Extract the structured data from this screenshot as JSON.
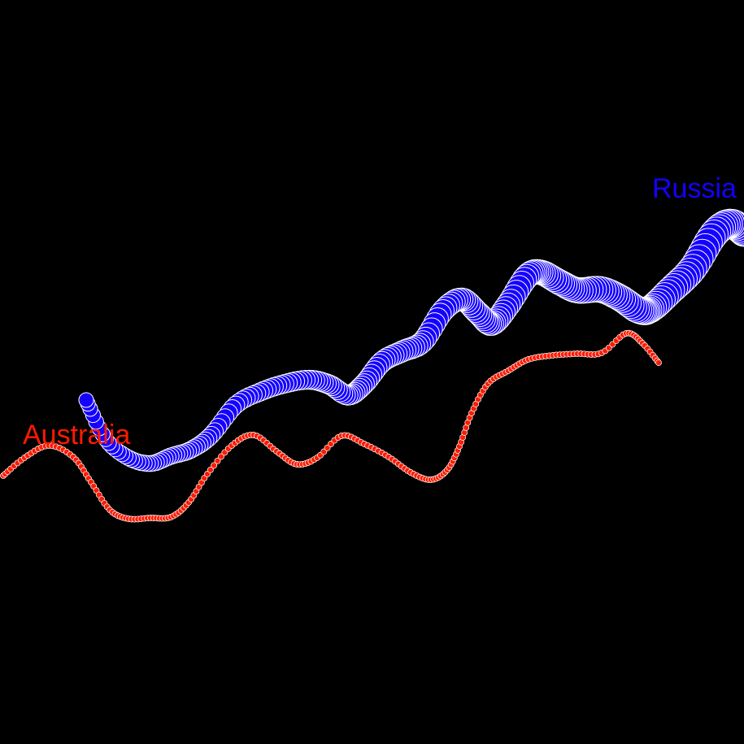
{
  "chart_data": {
    "type": "scatter",
    "title": "",
    "xlabel": "",
    "ylabel": "",
    "grid": false,
    "legend": "none",
    "background": "#000000",
    "marker_edge": "#ffffff",
    "series": [
      {
        "name": "Russia",
        "color": "#1500ff",
        "size": "large",
        "points": [
          [
            106,
            492
          ],
          [
            130,
            540
          ],
          [
            158,
            563
          ],
          [
            185,
            570
          ],
          [
            210,
            561
          ],
          [
            235,
            553
          ],
          [
            260,
            535
          ],
          [
            290,
            498
          ],
          [
            320,
            482
          ],
          [
            350,
            472
          ],
          [
            380,
            467
          ],
          [
            405,
            473
          ],
          [
            428,
            486
          ],
          [
            448,
            472
          ],
          [
            470,
            445
          ],
          [
            495,
            432
          ],
          [
            520,
            420
          ],
          [
            545,
            382
          ],
          [
            568,
            368
          ],
          [
            588,
            385
          ],
          [
            605,
            398
          ],
          [
            625,
            375
          ],
          [
            648,
            340
          ],
          [
            665,
            335
          ],
          [
            688,
            347
          ],
          [
            710,
            357
          ],
          [
            738,
            356
          ],
          [
            762,
            366
          ],
          [
            785,
            381
          ],
          [
            800,
            380
          ],
          [
            825,
            357
          ],
          [
            852,
            330
          ],
          [
            878,
            288
          ],
          [
            898,
            275
          ],
          [
            915,
            285
          ]
        ]
      },
      {
        "name": "Australia",
        "color": "#ff1a00",
        "size": "small",
        "points": [
          [
            4,
            585
          ],
          [
            30,
            563
          ],
          [
            60,
            548
          ],
          [
            90,
            562
          ],
          [
            112,
            593
          ],
          [
            135,
            627
          ],
          [
            158,
            638
          ],
          [
            185,
            637
          ],
          [
            210,
            636
          ],
          [
            232,
            618
          ],
          [
            255,
            583
          ],
          [
            285,
            548
          ],
          [
            312,
            535
          ],
          [
            340,
            555
          ],
          [
            365,
            571
          ],
          [
            390,
            563
          ],
          [
            420,
            536
          ],
          [
            448,
            546
          ],
          [
            478,
            562
          ],
          [
            505,
            581
          ],
          [
            530,
            590
          ],
          [
            550,
            578
          ],
          [
            565,
            549
          ],
          [
            580,
            508
          ],
          [
            600,
            472
          ],
          [
            625,
            456
          ],
          [
            650,
            442
          ],
          [
            680,
            437
          ],
          [
            710,
            435
          ],
          [
            740,
            434
          ],
          [
            770,
            410
          ],
          [
            790,
            422
          ],
          [
            810,
            446
          ]
        ]
      }
    ],
    "labels": [
      {
        "text": "Russia",
        "series": 0,
        "anchor": "top-right"
      },
      {
        "text": "Australia",
        "series": 1,
        "anchor": "left"
      }
    ]
  }
}
